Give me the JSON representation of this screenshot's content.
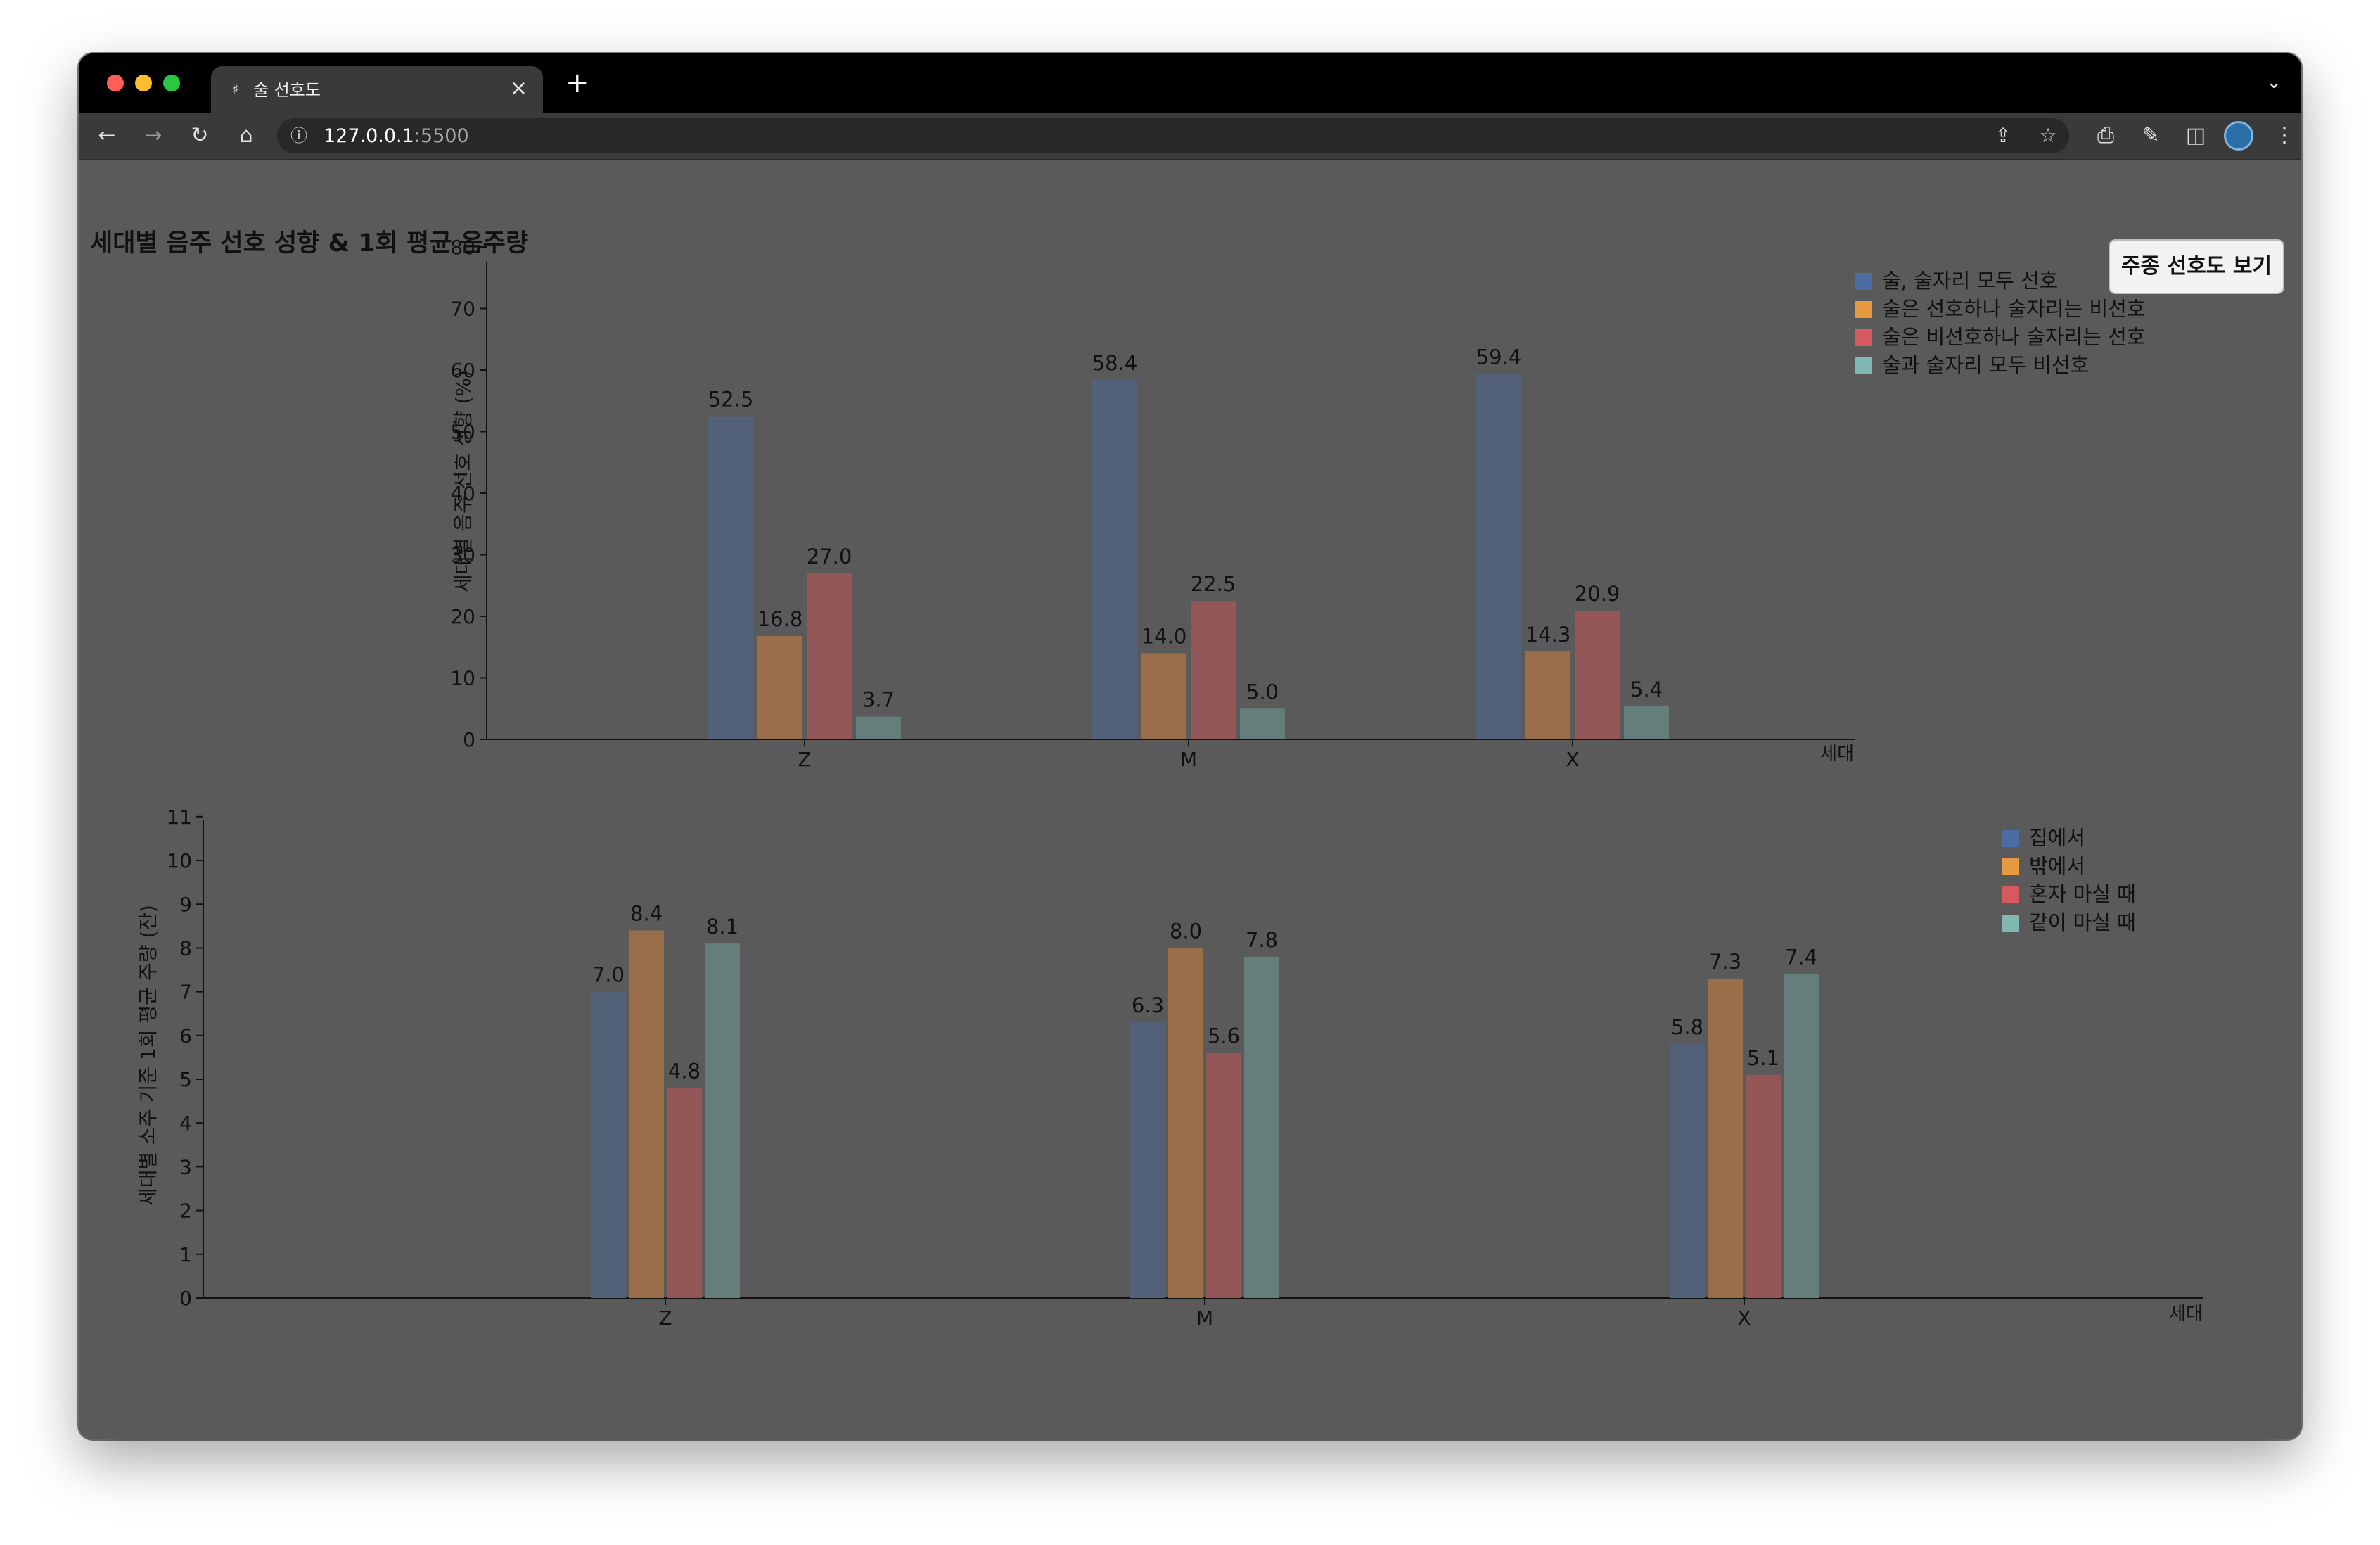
{
  "browser": {
    "tab_title": "술 선호도",
    "url_host": "127.0.0.1",
    "url_port": ":5500"
  },
  "page": {
    "title": "세대별 음주 선호 성향 & 1회 평균 음주량",
    "toggle_button": "주종 선호도 보기"
  },
  "colors": {
    "blue": "#536279",
    "orange": "#9a6e48",
    "red": "#955658",
    "teal": "#667e7b",
    "legend_blue": "#4c6da4",
    "legend_orange": "#e69a42",
    "legend_red": "#d55a5d",
    "legend_teal": "#82b8b4"
  },
  "chart_data": [
    {
      "type": "bar",
      "title": "",
      "xlabel": "세대",
      "ylabel": "세대별 음주 선호 성향 (%)",
      "ylim": [
        0,
        83
      ],
      "yticks": [
        0,
        10,
        20,
        30,
        40,
        50,
        60,
        70,
        80
      ],
      "categories": [
        "Z",
        "M",
        "X"
      ],
      "legend_position": "top-right",
      "grid": false,
      "series": [
        {
          "name": "술, 술자리 모두 선호",
          "values": [
            52.5,
            58.4,
            59.4
          ],
          "labels": [
            "52.5",
            "58.4",
            "59.4"
          ]
        },
        {
          "name": "술은 선호하나 술자리는 비선호",
          "values": [
            16.8,
            14.0,
            14.3
          ],
          "labels": [
            "16.8",
            "14.0",
            "14.3"
          ]
        },
        {
          "name": "술은 비선호하나 술자리는 선호",
          "values": [
            27.0,
            22.5,
            20.9
          ],
          "labels": [
            "27.0",
            "22.5",
            "20.9"
          ]
        },
        {
          "name": "술과 술자리 모두 비선호",
          "values": [
            3.7,
            5.0,
            5.4
          ],
          "labels": [
            "3.7",
            "5.0",
            "5.4"
          ]
        }
      ]
    },
    {
      "type": "bar",
      "title": "",
      "xlabel": "세대",
      "ylabel": "세대별 소주 기준 1회 평균 주량 (잔)",
      "ylim": [
        0,
        11.7
      ],
      "yticks": [
        0,
        1,
        2,
        3,
        4,
        5,
        6,
        7,
        8,
        9,
        10,
        11
      ],
      "categories": [
        "Z",
        "M",
        "X"
      ],
      "legend_position": "top-right",
      "grid": false,
      "series": [
        {
          "name": "집에서",
          "values": [
            7.0,
            6.3,
            5.8
          ],
          "labels": [
            "7.0",
            "6.3",
            "5.8"
          ]
        },
        {
          "name": "밖에서",
          "values": [
            8.4,
            8.0,
            7.3
          ],
          "labels": [
            "8.4",
            "8.0",
            "7.3"
          ]
        },
        {
          "name": "혼자 마실 때",
          "values": [
            4.8,
            5.6,
            5.1
          ],
          "labels": [
            "4.8",
            "5.6",
            "5.1"
          ]
        },
        {
          "name": "같이 마실 때",
          "values": [
            8.1,
            7.8,
            7.4
          ],
          "labels": [
            "8.1",
            "7.8",
            "7.4"
          ]
        }
      ]
    }
  ]
}
